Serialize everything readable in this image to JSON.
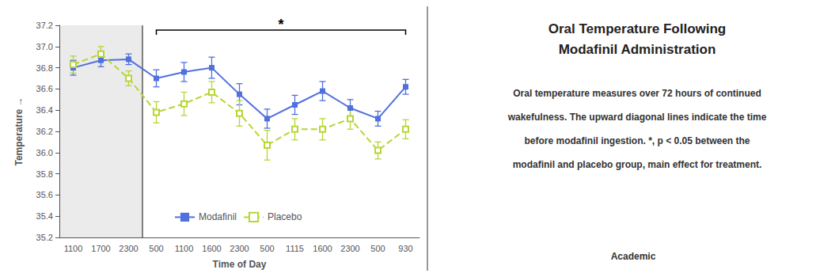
{
  "chart_data": {
    "type": "line",
    "title": "Oral Temperature Following\nModafinil Administration",
    "subtitle": "Oral temperature measures over 72 hours of continued\nwakefulness. The upward diagonal lines indicate the time\nbefore modafinil ingestion. *, p < 0.05 between the\nmodafinil and placebo group, main effect for treatment.",
    "source": "Academic",
    "x_label": "Time of Day",
    "y_label": "Temperature →",
    "categories": [
      "1100",
      "1700",
      "2300",
      "500",
      "1100",
      "1600",
      "2300",
      "500",
      "1115",
      "1600",
      "2300",
      "500",
      "930"
    ],
    "series": [
      {
        "name": "Modafinil",
        "marker": "square",
        "line_style": "solid",
        "values": [
          36.8,
          36.87,
          36.88,
          36.7,
          36.76,
          36.8,
          36.55,
          36.32,
          36.45,
          36.58,
          36.42,
          36.32,
          36.62
        ],
        "errors": [
          0.07,
          0.06,
          0.05,
          0.08,
          0.09,
          0.1,
          0.1,
          0.09,
          0.09,
          0.09,
          0.08,
          0.07,
          0.07
        ]
      },
      {
        "name": "Placebo",
        "marker": "open_square",
        "line_style": "dashed",
        "values": [
          36.83,
          36.93,
          36.7,
          36.38,
          36.46,
          36.57,
          36.37,
          36.07,
          36.22,
          36.22,
          36.32,
          36.02,
          36.22
        ],
        "errors": [
          0.08,
          0.07,
          0.07,
          0.1,
          0.11,
          0.1,
          0.12,
          0.14,
          0.1,
          0.1,
          0.1,
          0.08,
          0.09
        ]
      }
    ],
    "ylim": [
      35.2,
      37.2
    ],
    "yticks": [
      35.2,
      35.4,
      35.6,
      35.8,
      {
        "value": 36.0,
        "label": "36.0"
      },
      36.2,
      36.4,
      36.6,
      36.8,
      {
        "value": 37.0,
        "label": "37.0"
      },
      37.2
    ],
    "shaded": {
      "start_index": 0,
      "end_index": 2
    },
    "annotations": [
      {
        "text": "*",
        "start_index": 3,
        "end_index": 12,
        "y": 37.155
      }
    ],
    "legend": "lower center",
    "grid": false
  }
}
